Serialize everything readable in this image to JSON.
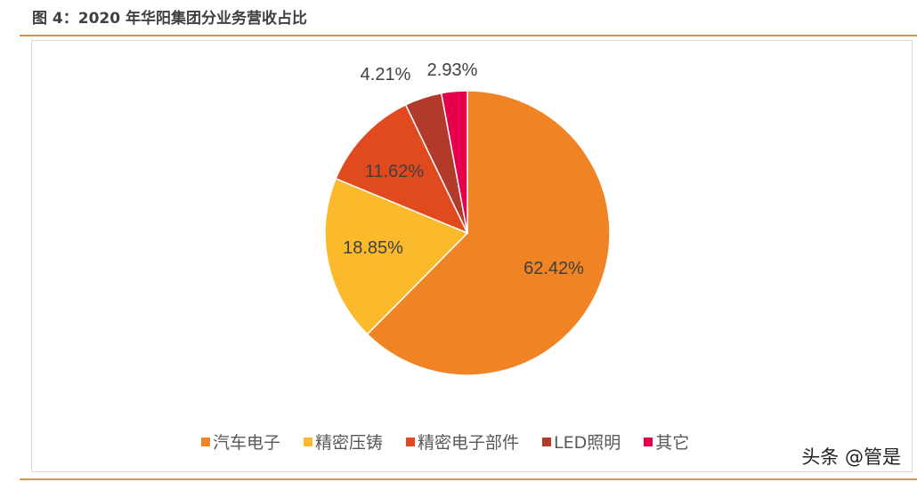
{
  "title": "图 4：2020 年华阳集团分业务营收占比",
  "watermark": "头条 @管是",
  "chart_data": {
    "type": "pie",
    "title": "",
    "categories": [
      "汽车电子",
      "精密压铸",
      "精密电子部件",
      "LED照明",
      "其它"
    ],
    "values": [
      62.42,
      18.85,
      11.62,
      4.21,
      2.93
    ],
    "labels": [
      "62.42%",
      "18.85%",
      "11.62%",
      "4.21%",
      "2.93%"
    ],
    "colors": [
      "#F08323",
      "#FBBA2C",
      "#E04A1E",
      "#B23A2A",
      "#E6004C"
    ],
    "start_angle": "12 o'clock",
    "direction": "clockwise",
    "legend_position": "bottom"
  }
}
